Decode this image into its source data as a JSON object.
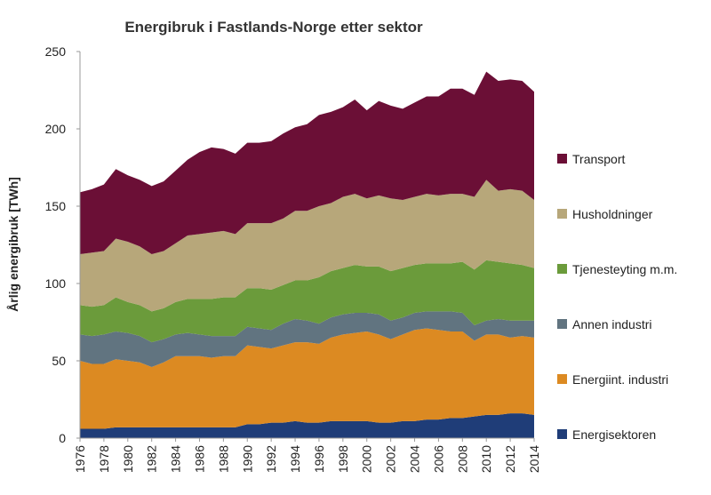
{
  "chart_data": {
    "type": "stacked-area",
    "title": "Energibruk i Fastlands-Norge etter sektor",
    "y_label": "Årlig energibruk [TWh]",
    "x": [
      1976,
      1977,
      1978,
      1979,
      1980,
      1981,
      1982,
      1983,
      1984,
      1985,
      1986,
      1987,
      1988,
      1989,
      1990,
      1991,
      1992,
      1993,
      1994,
      1995,
      1996,
      1997,
      1998,
      1999,
      2000,
      2001,
      2002,
      2003,
      2004,
      2005,
      2006,
      2007,
      2008,
      2009,
      2010,
      2011,
      2012,
      2013,
      2014
    ],
    "xlim": [
      1976,
      2014
    ],
    "xticks": [
      1976,
      1978,
      1980,
      1982,
      1984,
      1986,
      1988,
      1990,
      1992,
      1994,
      1996,
      1998,
      2000,
      2002,
      2004,
      2006,
      2008,
      2010,
      2012,
      2014
    ],
    "ylim": [
      0,
      250
    ],
    "yticks": [
      0,
      50,
      100,
      150,
      200,
      250
    ],
    "legend": "right",
    "series": [
      {
        "name": "Energisektoren",
        "color": "#1f3d78",
        "values": [
          6,
          6,
          6,
          7,
          7,
          7,
          7,
          7,
          7,
          7,
          7,
          7,
          7,
          7,
          9,
          9,
          10,
          10,
          11,
          10,
          10,
          11,
          11,
          11,
          11,
          10,
          10,
          11,
          11,
          12,
          12,
          13,
          13,
          14,
          15,
          15,
          16,
          16,
          15
        ]
      },
      {
        "name": "Energiint. industri",
        "color": "#dc8a22",
        "values": [
          44,
          42,
          42,
          44,
          43,
          42,
          39,
          42,
          46,
          46,
          46,
          45,
          46,
          46,
          51,
          50,
          48,
          50,
          51,
          52,
          51,
          54,
          56,
          57,
          58,
          57,
          54,
          56,
          59,
          59,
          58,
          56,
          56,
          49,
          52,
          52,
          49,
          50,
          50
        ]
      },
      {
        "name": "Annen industri",
        "color": "#617480",
        "values": [
          17,
          18,
          19,
          18,
          18,
          17,
          16,
          15,
          14,
          15,
          14,
          14,
          13,
          13,
          12,
          12,
          12,
          14,
          15,
          14,
          13,
          13,
          13,
          13,
          12,
          13,
          12,
          11,
          11,
          11,
          12,
          13,
          12,
          10,
          9,
          10,
          11,
          10,
          11
        ]
      },
      {
        "name": "Tjenesteyting m.m.",
        "color": "#6b9b3b",
        "values": [
          19,
          19,
          19,
          22,
          20,
          20,
          20,
          20,
          21,
          22,
          23,
          24,
          25,
          25,
          25,
          26,
          26,
          25,
          25,
          26,
          30,
          30,
          30,
          31,
          30,
          31,
          32,
          32,
          31,
          31,
          31,
          31,
          33,
          36,
          39,
          37,
          37,
          36,
          34
        ]
      },
      {
        "name": "Husholdninger",
        "color": "#b7a77a",
        "values": [
          33,
          35,
          35,
          38,
          39,
          38,
          37,
          37,
          38,
          41,
          42,
          43,
          43,
          41,
          42,
          42,
          43,
          43,
          45,
          45,
          46,
          44,
          46,
          46,
          44,
          46,
          47,
          44,
          44,
          45,
          44,
          45,
          44,
          47,
          52,
          46,
          48,
          48,
          44
        ]
      },
      {
        "name": "Transport",
        "color": "#6b0f36",
        "values": [
          40,
          41,
          43,
          45,
          43,
          43,
          44,
          45,
          47,
          49,
          53,
          55,
          53,
          52,
          52,
          52,
          53,
          55,
          54,
          56,
          59,
          59,
          58,
          61,
          57,
          61,
          60,
          59,
          61,
          63,
          64,
          68,
          68,
          66,
          70,
          71,
          71,
          71,
          70
        ]
      }
    ]
  }
}
